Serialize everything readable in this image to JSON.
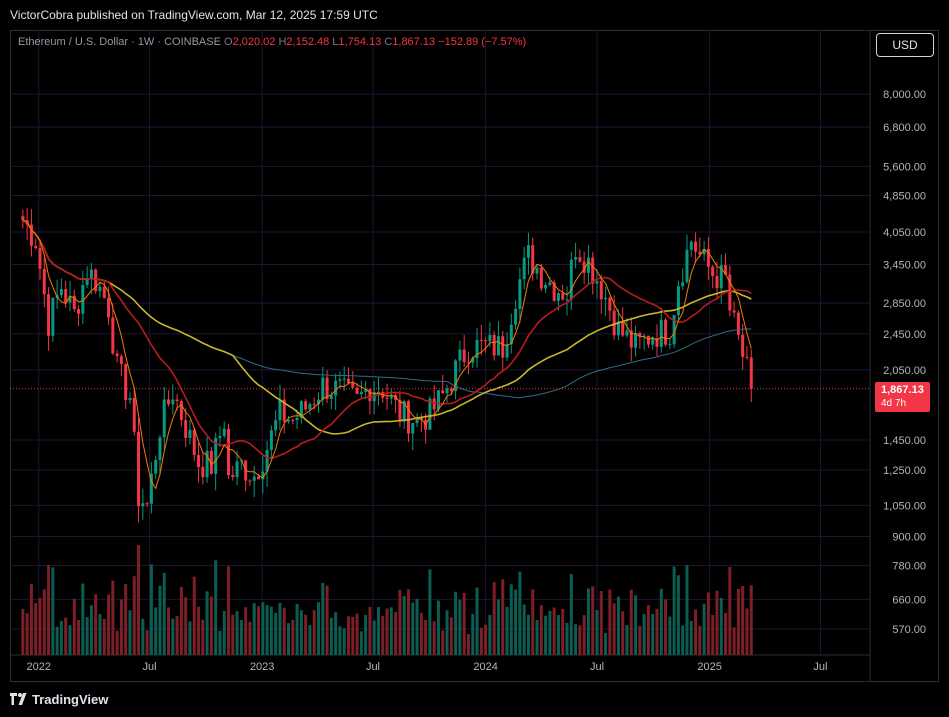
{
  "publisher": "VictorCobra published on TradingView.com, Mar 12, 2025 17:59 UTC",
  "legend": {
    "symbol": "Ethereum / U.S. Dollar · 1W · COINBASE",
    "o_label": "O",
    "o": "2,020.02",
    "h_label": "H",
    "h": "2,152.48",
    "l_label": "L",
    "l": "1,754.13",
    "c_label": "C",
    "c": "1,867.13",
    "change": "−152.89 (−7.57%)"
  },
  "currency_button": "USD",
  "last_price": {
    "price": "1,867.13",
    "countdown": "4d 7h"
  },
  "brand": "TradingView",
  "colors": {
    "up": "#089981",
    "down": "#f23645",
    "ma_fast": "#f57c00",
    "ma_mid": "#b71c1c",
    "ma_long": "#c9b82a",
    "ma_slow": "#2c6f8a",
    "grid": "#1e1533"
  },
  "chart_data": {
    "type": "line",
    "log_scale": true,
    "grid": true,
    "x_tick_labels": [
      "2022",
      "Jul",
      "2023",
      "Jul",
      "2024",
      "Jul",
      "2025",
      "Jul"
    ],
    "y_tick_labels": [
      "570.00",
      "660.00",
      "780.00",
      "900.00",
      "1,050.00",
      "1,250.00",
      "1,450.00",
      "2,050.00",
      "2,450.00",
      "2,850.00",
      "3,450.00",
      "4,050.00",
      "4,850.00",
      "5,600.00",
      "6,800.00",
      "8,000.00"
    ],
    "series": [
      {
        "values_desc": "weekly close, approximate",
        "x": [
          "2021-12-06",
          "2021-12-27",
          "2022-01-17",
          "2022-02-07",
          "2022-02-28",
          "2022-03-21",
          "2022-04-04",
          "2022-04-25",
          "2022-05-09",
          "2022-05-30",
          "2022-06-13",
          "2022-06-27",
          "2022-07-18",
          "2022-08-08",
          "2022-08-29",
          "2022-09-19",
          "2022-10-10",
          "2022-10-31",
          "2022-11-07",
          "2022-11-28",
          "2022-12-19",
          "2023-01-09",
          "2023-01-30",
          "2023-02-20",
          "2023-03-13",
          "2023-04-10",
          "2023-05-08",
          "2023-06-05",
          "2023-06-26",
          "2023-07-17",
          "2023-08-14",
          "2023-09-11",
          "2023-10-02",
          "2023-10-23",
          "2023-11-13",
          "2023-12-04",
          "2024-01-01",
          "2024-01-29",
          "2024-02-19",
          "2024-03-11",
          "2024-04-01",
          "2024-04-22",
          "2024-05-13",
          "2024-05-27",
          "2024-06-17",
          "2024-07-08",
          "2024-08-05",
          "2024-09-02",
          "2024-09-30",
          "2024-10-28",
          "2024-11-11",
          "2024-12-02",
          "2024-12-16",
          "2025-01-06",
          "2025-01-27",
          "2025-02-03",
          "2025-02-24",
          "2025-03-10"
        ],
        "y": [
          4300,
          3900,
          2600,
          3100,
          2700,
          3350,
          3200,
          2800,
          2050,
          1800,
          1100,
          1050,
          1550,
          1850,
          1550,
          1300,
          1280,
          1600,
          1200,
          1280,
          1220,
          1400,
          1650,
          1600,
          1700,
          1900,
          1850,
          1750,
          1900,
          1870,
          1650,
          1600,
          1650,
          1800,
          2050,
          2300,
          2300,
          2300,
          3000,
          3600,
          3300,
          3100,
          3000,
          3800,
          3500,
          3100,
          2500,
          2300,
          2450,
          2500,
          3200,
          3900,
          3600,
          3300,
          3200,
          2750,
          2200,
          1867
        ]
      }
    ]
  }
}
